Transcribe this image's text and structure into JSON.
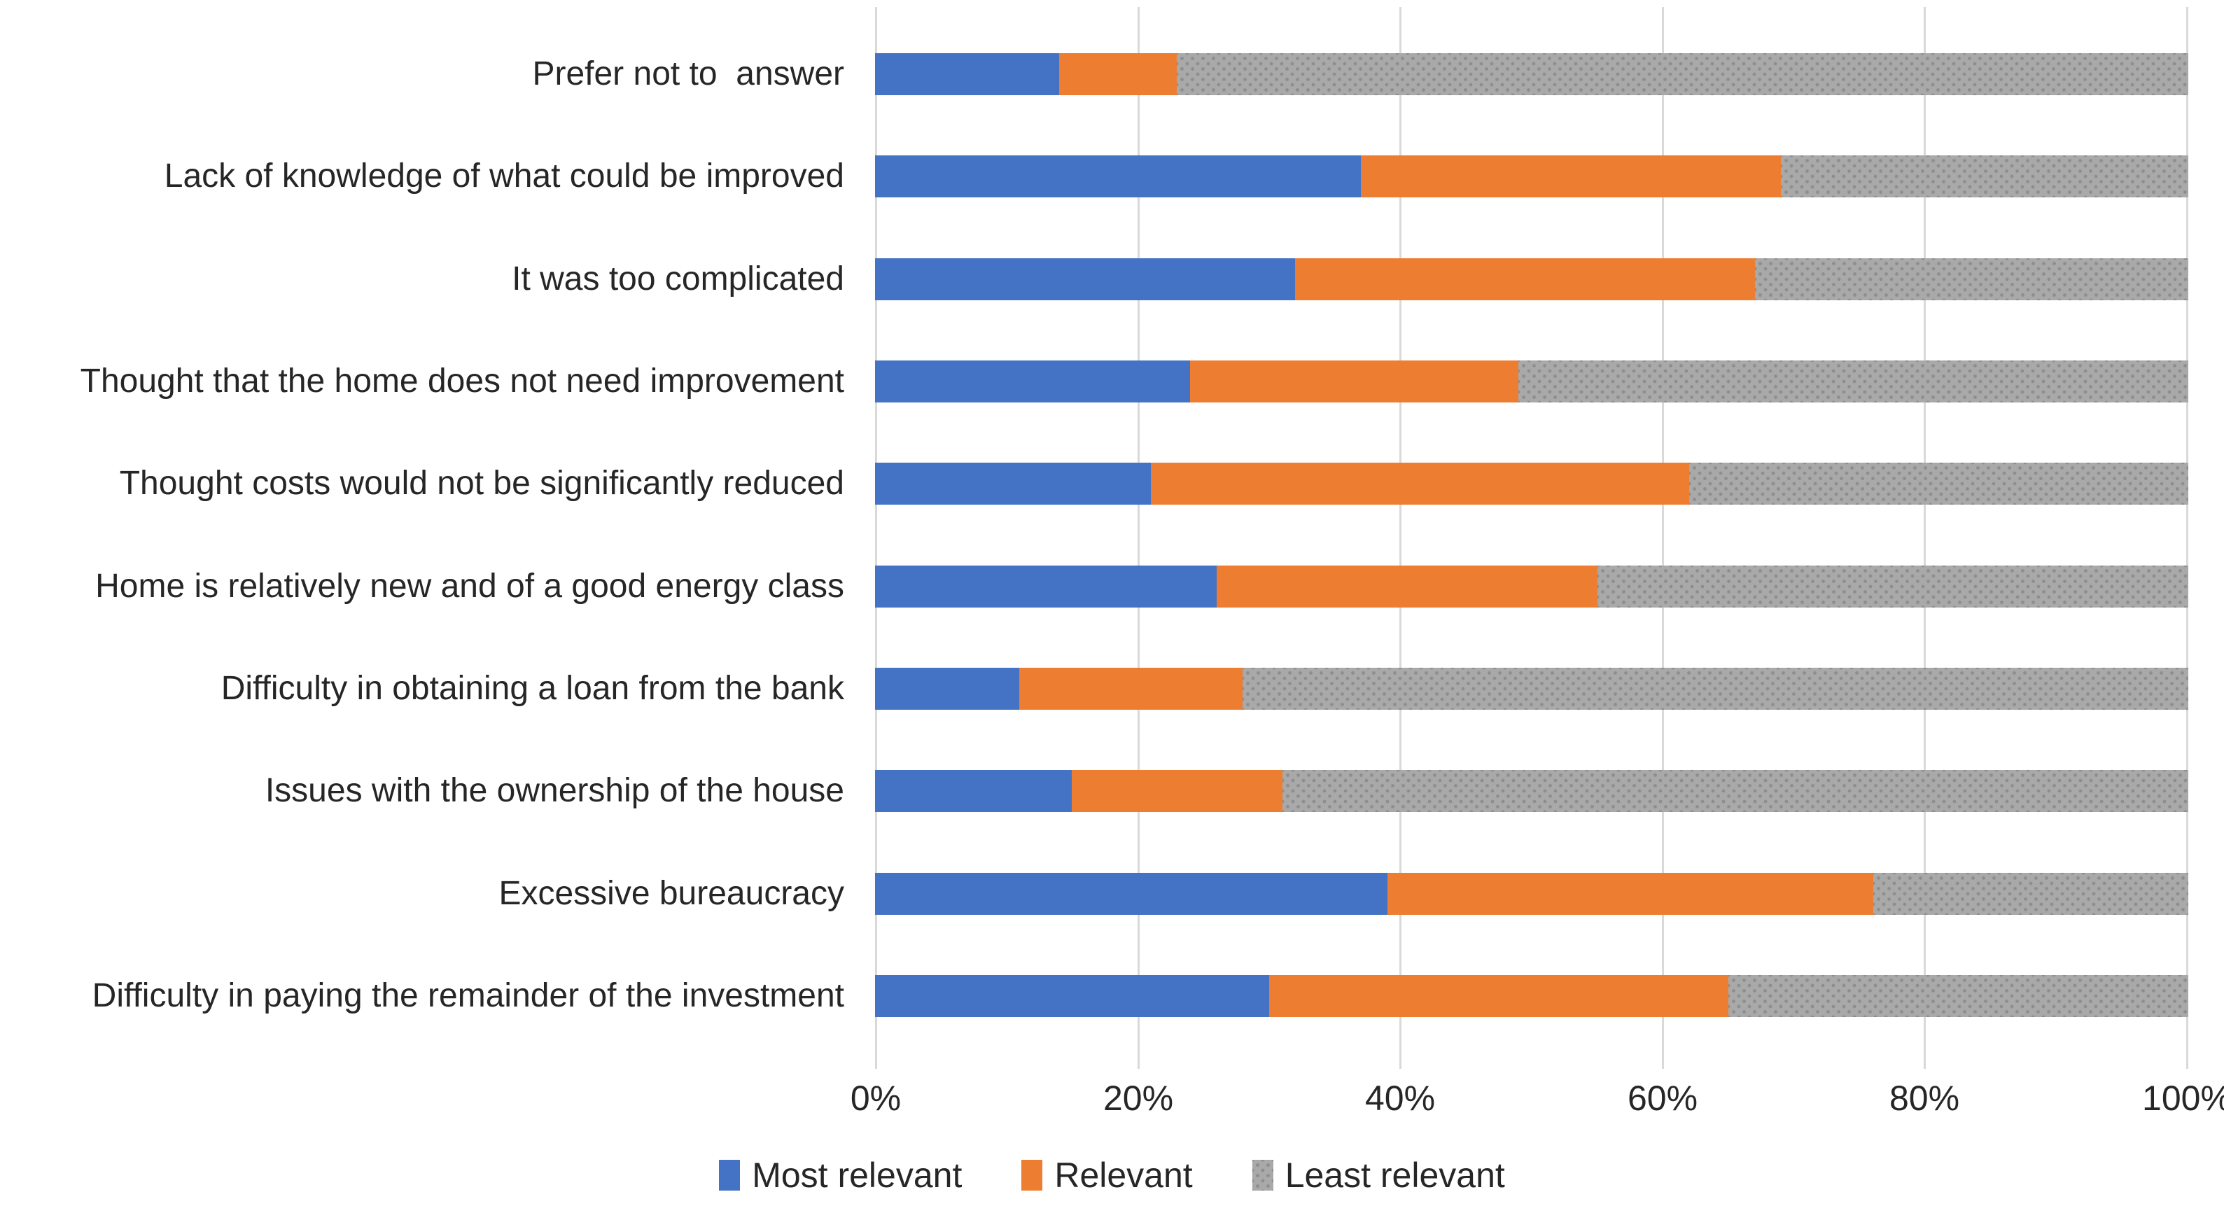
{
  "chart_data": {
    "type": "bar",
    "orientation": "horizontal",
    "stacked": true,
    "unit": "%",
    "title": "",
    "xlabel": "",
    "ylabel": "",
    "categories": [
      "Prefer not to  answer",
      "Lack of knowledge of what could be improved",
      "It was too complicated",
      "Thought that the home does not need improvement",
      "Thought costs would not be significantly reduced",
      "Home is relatively new and of a good energy class",
      "Difficulty in obtaining a loan from the bank",
      "Issues with the ownership of the house",
      "Excessive bureaucracy",
      "Difficulty in paying the remainder of the investment"
    ],
    "series": [
      {
        "name": "Most relevant",
        "color": "#4472C4",
        "pattern": "solid",
        "values": [
          14,
          37,
          32,
          24,
          21,
          26,
          11,
          15,
          39,
          30
        ]
      },
      {
        "name": "Relevant",
        "color": "#ED7D31",
        "pattern": "solid",
        "values": [
          9,
          32,
          35,
          25,
          41,
          29,
          17,
          16,
          37,
          35
        ]
      },
      {
        "name": "Least relevant",
        "color": "#A9A9A9",
        "pattern": "dotted",
        "values": [
          77,
          31,
          33,
          51,
          38,
          45,
          72,
          69,
          24,
          35
        ]
      }
    ],
    "xlim": [
      0,
      100
    ],
    "x_ticks": [
      "0%",
      "20%",
      "40%",
      "60%",
      "80%",
      "100%"
    ],
    "x_tick_values": [
      0,
      20,
      40,
      60,
      80,
      100
    ],
    "grid": "vertical",
    "gridline_color": "#D9D9D9",
    "legend_position": "bottom",
    "legend": [
      "Most relevant",
      "Relevant",
      "Least relevant"
    ]
  },
  "colors": {
    "background": "#FFFFFF",
    "text": "#262626",
    "grid": "#D9D9D9"
  }
}
